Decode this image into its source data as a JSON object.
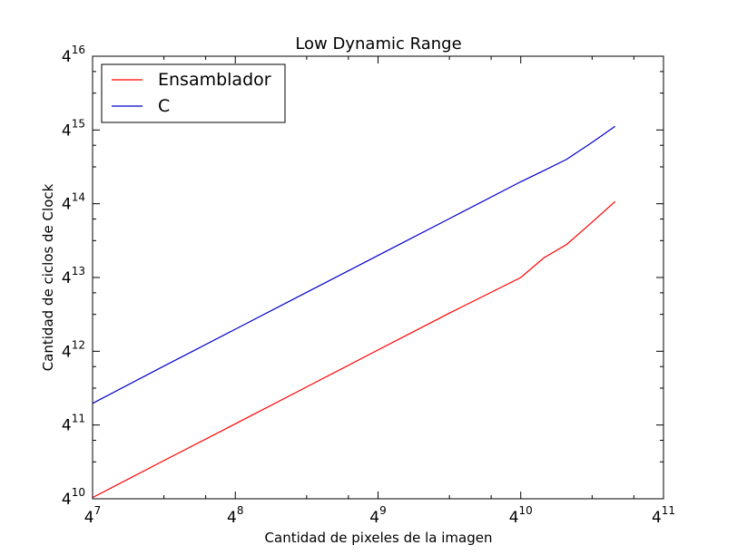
{
  "chart_data": {
    "type": "line",
    "title": "Low Dynamic Range",
    "xlabel": "Cantidad de pixeles de la imagen",
    "ylabel": "Cantidad de ciclos de Clock",
    "scale": {
      "x": "log4",
      "y": "log4"
    },
    "xlim": [
      16384,
      4194304
    ],
    "ylim": [
      1048576,
      4294967296
    ],
    "xticks": [
      {
        "value": 16384,
        "base": "4",
        "exp": "7"
      },
      {
        "value": 65536,
        "base": "4",
        "exp": "8"
      },
      {
        "value": 262144,
        "base": "4",
        "exp": "9"
      },
      {
        "value": 1048576,
        "base": "4",
        "exp": "10"
      },
      {
        "value": 4194304,
        "base": "4",
        "exp": "11"
      }
    ],
    "yticks": [
      {
        "value": 1048576,
        "base": "4",
        "exp": "10"
      },
      {
        "value": 4194304,
        "base": "4",
        "exp": "11"
      },
      {
        "value": 16777216,
        "base": "4",
        "exp": "12"
      },
      {
        "value": 67108864,
        "base": "4",
        "exp": "13"
      },
      {
        "value": 268435456,
        "base": "4",
        "exp": "14"
      },
      {
        "value": 1073741824,
        "base": "4",
        "exp": "15"
      },
      {
        "value": 4294967296,
        "base": "4",
        "exp": "16"
      }
    ],
    "grid": false,
    "legend": "top-left",
    "series": [
      {
        "name": "Ensamblador",
        "color": "#ff0000",
        "x": [
          16384,
          32768,
          65536,
          131072,
          262144,
          524288,
          1048576,
          1310720,
          1638400,
          2097152,
          2621440
        ],
        "y": [
          1073742,
          2147484,
          4294967,
          8589935,
          17179869,
          34359738,
          67108864,
          97000000,
          125000000,
          190000000,
          280000000
        ]
      },
      {
        "name": "C",
        "color": "#0000cc",
        "x": [
          16384,
          32768,
          65536,
          131072,
          262144,
          524288,
          1048576,
          1310720,
          1638400,
          2097152,
          2621440
        ],
        "y": [
          6300000,
          12700000,
          25400000,
          50800000,
          101600000,
          203000000,
          406000000,
          500000000,
          620000000,
          850000000,
          1150000000
        ]
      }
    ]
  }
}
